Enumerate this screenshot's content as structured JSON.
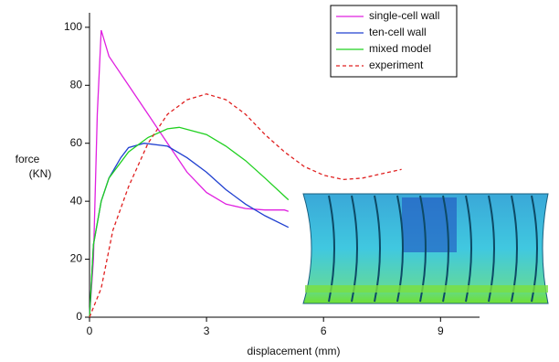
{
  "chart_data": {
    "type": "line",
    "xlabel": "displacement (mm)",
    "ylabel": [
      "force",
      "(KN)"
    ],
    "xlim": [
      0,
      10
    ],
    "xticks": [
      0,
      3,
      6,
      9
    ],
    "ylim": [
      0,
      105
    ],
    "yticks": [
      0,
      20,
      40,
      60,
      80,
      100
    ],
    "legend": "top-right",
    "series": [
      {
        "name": "single-cell wall",
        "color": "#e020e0",
        "dash": false,
        "x": [
          0,
          0.1,
          0.2,
          0.3,
          0.5,
          1,
          1.5,
          2,
          2.5,
          3,
          3.5,
          4,
          4.5,
          5,
          5.1
        ],
        "values": [
          0,
          20,
          70,
          99,
          90,
          80,
          70,
          60,
          50,
          43,
          39,
          37.5,
          37,
          37,
          36.5
        ]
      },
      {
        "name": "ten-cell wall",
        "color": "#2040d0",
        "dash": false,
        "x": [
          0,
          0.1,
          0.3,
          0.5,
          0.8,
          1,
          1.4,
          2,
          2.5,
          3,
          3.5,
          4,
          4.5,
          5.1
        ],
        "values": [
          0,
          25,
          40,
          48,
          55,
          58.5,
          60,
          59,
          55,
          50,
          44,
          39,
          35,
          31
        ]
      },
      {
        "name": "mixed model",
        "color": "#20d020",
        "dash": false,
        "x": [
          0,
          0.1,
          0.3,
          0.5,
          1,
          1.5,
          2,
          2.3,
          3,
          3.5,
          4,
          4.5,
          5.1
        ],
        "values": [
          0,
          25,
          40,
          48,
          57,
          62,
          65,
          65.5,
          63,
          59,
          54,
          48,
          40.5
        ]
      },
      {
        "name": "experiment",
        "color": "#e02020",
        "dash": true,
        "x": [
          0,
          0.3,
          0.6,
          1,
          1.5,
          2,
          2.5,
          3,
          3.5,
          4,
          4.5,
          5,
          5.5,
          6,
          6.5,
          7,
          7.5,
          8
        ],
        "values": [
          0,
          10,
          30,
          45,
          60,
          70,
          75,
          77,
          75,
          70,
          63,
          57,
          52,
          49,
          47.5,
          48,
          49.5,
          51
        ]
      }
    ]
  }
}
